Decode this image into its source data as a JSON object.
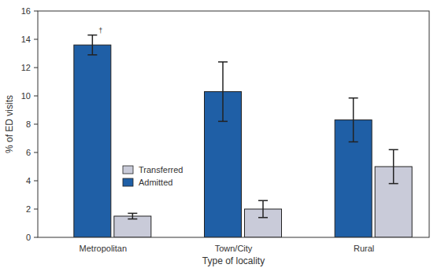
{
  "chart_data": {
    "type": "bar",
    "x_label": "Type of locality",
    "y_label": "% of ED visits",
    "categories": [
      "Metropolitan",
      "Town/City",
      "Rural"
    ],
    "series": [
      {
        "name": "Admitted",
        "color": "#1f5fa6",
        "values": [
          13.6,
          10.3,
          8.3
        ],
        "errors": [
          0.7,
          2.1,
          1.55
        ]
      },
      {
        "name": "Transferred",
        "color": "#c9cbd9",
        "values": [
          1.5,
          2.0,
          5.0
        ],
        "errors": [
          0.2,
          0.6,
          1.2
        ]
      }
    ],
    "annotations": [
      {
        "text": "†",
        "category": "Metropolitan",
        "series": "Admitted"
      }
    ],
    "ylim": [
      0,
      16
    ],
    "yticks": [
      0,
      2,
      4,
      6,
      8,
      10,
      12,
      14,
      16
    ],
    "legend": "upper-left"
  }
}
